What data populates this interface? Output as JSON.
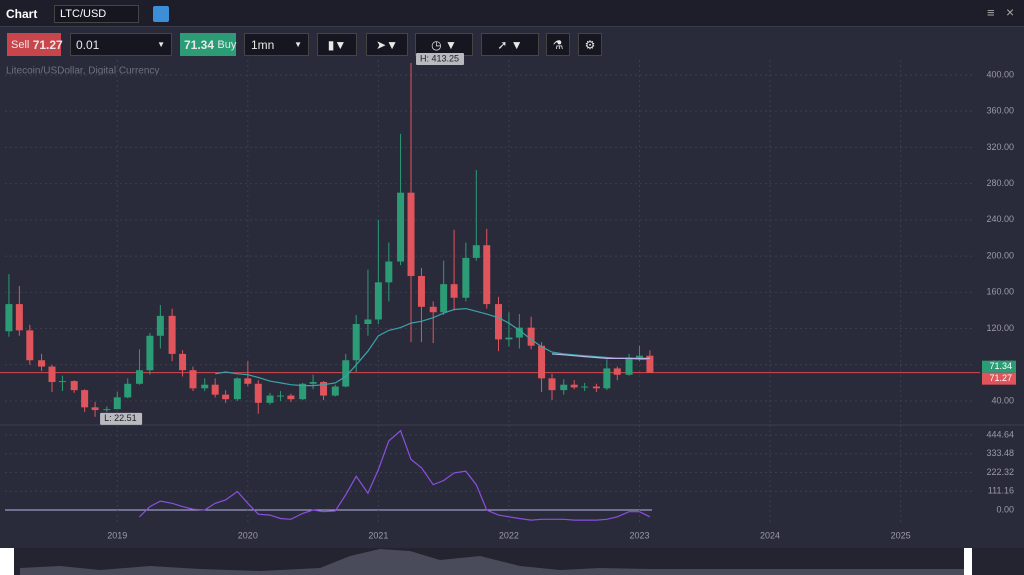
{
  "header": {
    "title": "Chart",
    "symbol": "LTC/USD"
  },
  "toolbar": {
    "sell_label": "Sell",
    "sell_price": "71.27",
    "amount": "0.01",
    "buy_price": "71.34",
    "buy_label": "Buy",
    "interval": "1mn"
  },
  "chart_data": {
    "type": "candlestick",
    "subtitle": "Litecoin/USDollar, Digital Currency",
    "high_label": "H: 413.25",
    "low_label": "L: 22.51",
    "x": [
      2018.17,
      2018.25,
      2018.33,
      2018.42,
      2018.5,
      2018.58,
      2018.67,
      2018.75,
      2018.83,
      2018.92,
      2019.0,
      2019.08,
      2019.17,
      2019.25,
      2019.33,
      2019.42,
      2019.5,
      2019.58,
      2019.67,
      2019.75,
      2019.83,
      2019.92,
      2020.0,
      2020.08,
      2020.17,
      2020.25,
      2020.33,
      2020.42,
      2020.5,
      2020.58,
      2020.67,
      2020.75,
      2020.83,
      2020.92,
      2021.0,
      2021.08,
      2021.17,
      2021.25,
      2021.33,
      2021.42,
      2021.5,
      2021.58,
      2021.67,
      2021.75,
      2021.83,
      2021.92,
      2022.0,
      2022.08,
      2022.17,
      2022.25,
      2022.33,
      2022.42,
      2022.5,
      2022.58,
      2022.67,
      2022.75,
      2022.83,
      2022.92,
      2023.0,
      2023.08
    ],
    "candles": [
      [
        117,
        180,
        111,
        147
      ],
      [
        147,
        167,
        112,
        118
      ],
      [
        118,
        124,
        80,
        85
      ],
      [
        85,
        92,
        73,
        78
      ],
      [
        78,
        80,
        50,
        61
      ],
      [
        61,
        68,
        51,
        62
      ],
      [
        62,
        63,
        49,
        52
      ],
      [
        52,
        53,
        28,
        33
      ],
      [
        33,
        39,
        22.51,
        30
      ],
      [
        30,
        34,
        28,
        31
      ],
      [
        31,
        50,
        31,
        44
      ],
      [
        44,
        65,
        43,
        59
      ],
      [
        59,
        97,
        58,
        74
      ],
      [
        74,
        115,
        69,
        112
      ],
      [
        112,
        146,
        98,
        134
      ],
      [
        134,
        142,
        84,
        92
      ],
      [
        92,
        96,
        67,
        74
      ],
      [
        74,
        78,
        51,
        54
      ],
      [
        54,
        65,
        51,
        58
      ],
      [
        58,
        65,
        44,
        47
      ],
      [
        47,
        52,
        38,
        42
      ],
      [
        42,
        66,
        40,
        65
      ],
      [
        65,
        84,
        56,
        59
      ],
      [
        59,
        63,
        26,
        38
      ],
      [
        38,
        49,
        36,
        46
      ],
      [
        46,
        51,
        40,
        46
      ],
      [
        46,
        48,
        39,
        42
      ],
      [
        42,
        60,
        41,
        59
      ],
      [
        59,
        69,
        53,
        61
      ],
      [
        61,
        62,
        41,
        46
      ],
      [
        46,
        58,
        45,
        56
      ],
      [
        56,
        92,
        55,
        85
      ],
      [
        85,
        135,
        72,
        125
      ],
      [
        125,
        185,
        112,
        130
      ],
      [
        130,
        240,
        125,
        171
      ],
      [
        171,
        215,
        150,
        194
      ],
      [
        194,
        335,
        190,
        270
      ],
      [
        270,
        413.25,
        105,
        178
      ],
      [
        178,
        187,
        105,
        144
      ],
      [
        144,
        150,
        104,
        138
      ],
      [
        138,
        195,
        135,
        169
      ],
      [
        169,
        229,
        140,
        154
      ],
      [
        154,
        215,
        150,
        198
      ],
      [
        198,
        295,
        195,
        212
      ],
      [
        212,
        230,
        142,
        147
      ],
      [
        147,
        155,
        95,
        108
      ],
      [
        108,
        138,
        100,
        110
      ],
      [
        110,
        136,
        98,
        121
      ],
      [
        121,
        133,
        97,
        101
      ],
      [
        101,
        105,
        50,
        65
      ],
      [
        65,
        70,
        41,
        52
      ],
      [
        52,
        64,
        47,
        58
      ],
      [
        58,
        63,
        53,
        55
      ],
      [
        55,
        60,
        51,
        56
      ],
      [
        56,
        59,
        50,
        54
      ],
      [
        54,
        86,
        52,
        76
      ],
      [
        76,
        78,
        63,
        69
      ],
      [
        69,
        92,
        68,
        88
      ],
      [
        88,
        101,
        84,
        90
      ],
      [
        90,
        96,
        71.27,
        71.27
      ]
    ],
    "up_color": "#2b9c75",
    "down_color": "#e0545c",
    "ma": {
      "color": "#3aa3a8",
      "values": [
        null,
        null,
        null,
        null,
        null,
        null,
        null,
        null,
        null,
        null,
        null,
        null,
        null,
        null,
        null,
        null,
        null,
        null,
        null,
        70,
        72,
        70,
        69,
        66,
        62,
        60,
        58,
        57,
        57,
        58,
        60,
        67,
        80,
        95,
        112,
        118,
        121,
        126,
        128,
        132,
        137,
        141,
        142,
        139,
        136,
        132,
        126,
        118,
        108,
        100,
        94,
        92,
        91,
        90,
        89,
        88,
        87,
        87,
        86,
        86
      ]
    },
    "ma2": {
      "color": "#b8b4e8",
      "values": [
        null,
        null,
        null,
        null,
        null,
        null,
        null,
        null,
        null,
        null,
        null,
        null,
        null,
        null,
        null,
        null,
        null,
        null,
        null,
        null,
        null,
        null,
        null,
        null,
        null,
        null,
        null,
        null,
        null,
        null,
        null,
        null,
        null,
        null,
        null,
        null,
        null,
        null,
        null,
        null,
        null,
        null,
        null,
        null,
        null,
        null,
        null,
        null,
        null,
        null,
        92,
        91,
        90,
        89,
        88,
        87,
        87,
        87,
        87,
        87
      ]
    },
    "indicator": {
      "color": "#8a4fe0",
      "values": [
        null,
        null,
        null,
        null,
        null,
        null,
        null,
        null,
        null,
        null,
        null,
        null,
        -40,
        20,
        53,
        40,
        20,
        5,
        0,
        40,
        60,
        110,
        40,
        -25,
        -30,
        -50,
        -55,
        -20,
        0,
        -10,
        -5,
        90,
        200,
        100,
        240,
        410,
        470,
        300,
        250,
        150,
        175,
        220,
        230,
        150,
        0,
        -30,
        -40,
        -50,
        -60,
        -55,
        -55,
        -55,
        -60,
        -60,
        -60,
        -55,
        -40,
        -10,
        -10,
        -40
      ],
      "ylim": [
        -71,
        504
      ],
      "yticks": [
        {
          "value": 0,
          "label": "0.00"
        },
        111.16,
        222.32,
        333.48,
        444.64
      ]
    },
    "current_line": {
      "value": 71.27,
      "color": "#d9474f"
    },
    "buy_marker": {
      "value": 71.34,
      "label": "71.34"
    },
    "sell_marker": {
      "value": 71.27,
      "label": "71.27"
    },
    "xlim": [
      2018.14,
      2025.57
    ],
    "xticks": [
      2019,
      2020,
      2021,
      2022,
      2023,
      2024,
      2025
    ],
    "ylim": [
      13.5,
      416.5
    ],
    "yticks": [
      {
        "value": 40,
        "label": "40.00"
      },
      {
        "value": 80,
        "label": "80.00"
      },
      {
        "value": 120,
        "label": "120.00"
      },
      {
        "value": 160,
        "label": "160.00"
      },
      {
        "value": 200,
        "label": "200.00"
      },
      {
        "value": 240,
        "label": "240.00"
      },
      {
        "value": 280,
        "label": "280.00"
      },
      {
        "value": 320,
        "label": "320.00"
      },
      {
        "value": 360,
        "label": "360.00"
      },
      {
        "value": 400,
        "label": "400.00"
      }
    ],
    "grid": true
  }
}
